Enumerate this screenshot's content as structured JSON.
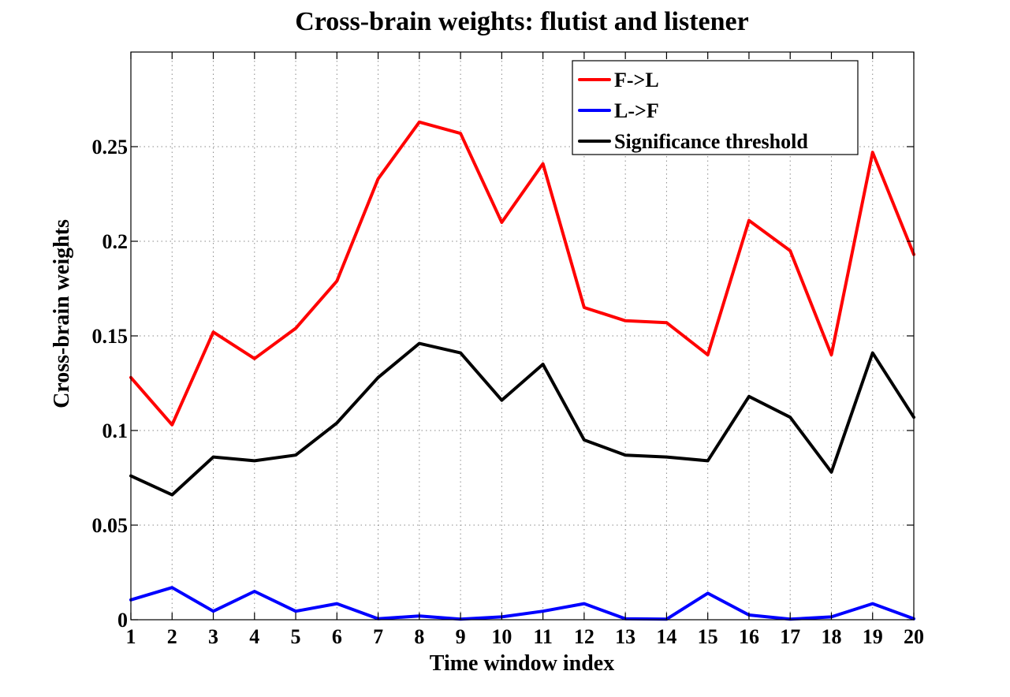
{
  "chart_data": {
    "type": "line",
    "title": "Cross-brain weights: flutist and listener",
    "xlabel": "Time window index",
    "ylabel": "Cross-brain weights",
    "xlim": [
      1,
      20
    ],
    "ylim": [
      0,
      0.3
    ],
    "x": [
      1,
      2,
      3,
      4,
      5,
      6,
      7,
      8,
      9,
      10,
      11,
      12,
      13,
      14,
      15,
      16,
      17,
      18,
      19,
      20
    ],
    "x_tick_labels": [
      "1",
      "2",
      "3",
      "4",
      "5",
      "6",
      "7",
      "8",
      "9",
      "10",
      "11",
      "12",
      "13",
      "14",
      "15",
      "16",
      "17",
      "18",
      "19",
      "20"
    ],
    "y_ticks": [
      0,
      0.05,
      0.1,
      0.15,
      0.2,
      0.25
    ],
    "y_tick_labels": [
      "0",
      "0.05",
      "0.1",
      "0.15",
      "0.2",
      "0.25"
    ],
    "grid": true,
    "legend_position": "top-right",
    "series": [
      {
        "name": "F->L",
        "color": "#ff0000",
        "values": [
          0.128,
          0.103,
          0.152,
          0.138,
          0.154,
          0.179,
          0.233,
          0.263,
          0.257,
          0.21,
          0.241,
          0.165,
          0.158,
          0.157,
          0.14,
          0.211,
          0.195,
          0.14,
          0.247,
          0.193
        ]
      },
      {
        "name": "L->F",
        "color": "#0000ff",
        "values": [
          0.0105,
          0.017,
          0.0045,
          0.015,
          0.0045,
          0.0085,
          0.0005,
          0.002,
          0.0003,
          0.0015,
          0.0045,
          0.0085,
          0.0005,
          0.0003,
          0.014,
          0.0025,
          0.0003,
          0.0015,
          0.0085,
          0.0005
        ]
      },
      {
        "name": "Significance threshold",
        "color": "#000000",
        "values": [
          0.076,
          0.066,
          0.086,
          0.084,
          0.087,
          0.104,
          0.128,
          0.146,
          0.141,
          0.116,
          0.135,
          0.095,
          0.087,
          0.086,
          0.084,
          0.118,
          0.107,
          0.078,
          0.141,
          0.107
        ]
      }
    ]
  }
}
